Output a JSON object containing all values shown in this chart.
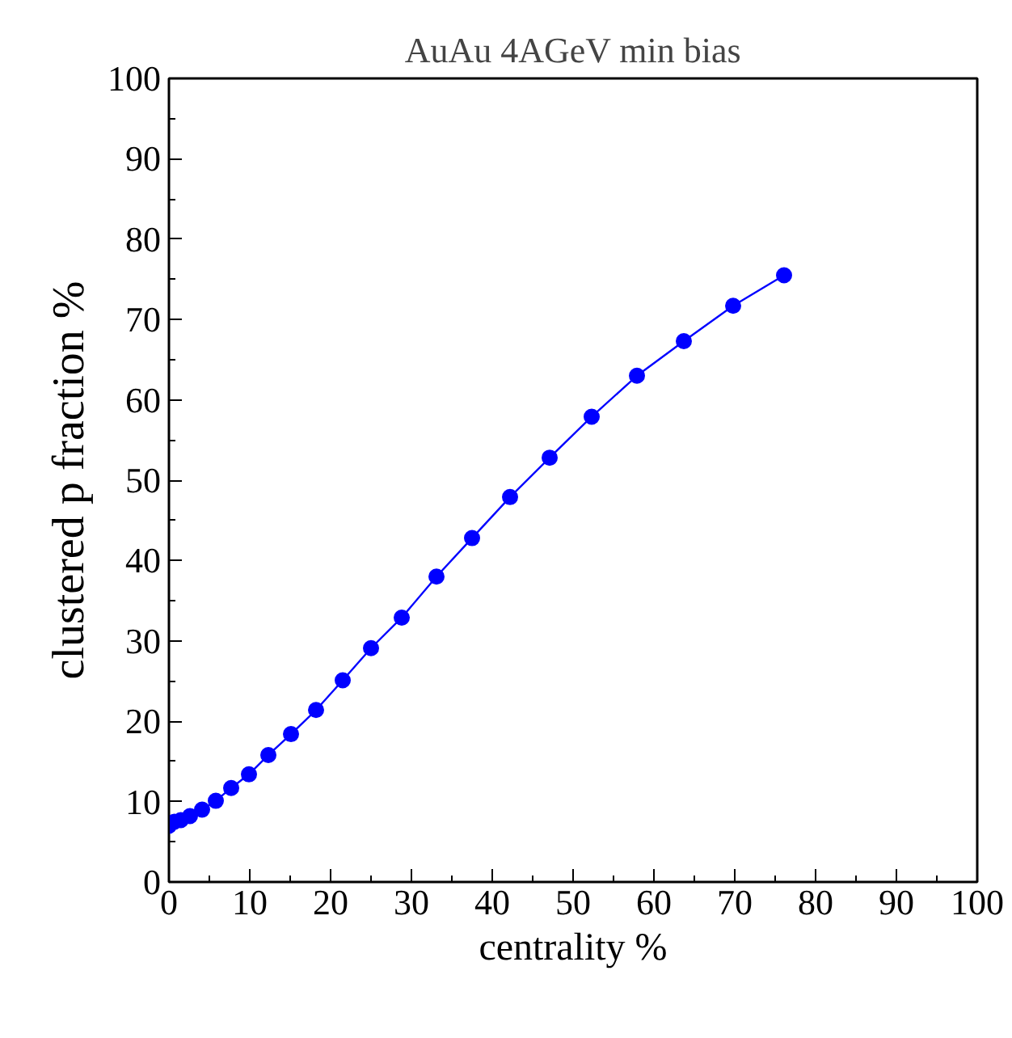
{
  "chart_data": {
    "type": "line",
    "title": "AuAu 4AGeV min bias",
    "xlabel": "centrality %",
    "ylabel": "clustered p fraction %",
    "x": [
      0,
      0.67,
      1.47,
      2.6,
      4.1,
      5.8,
      7.7,
      9.9,
      12.3,
      15.1,
      18.2,
      21.5,
      25,
      28.8,
      33.1,
      37.5,
      42.2,
      47.1,
      52.3,
      57.9,
      63.7,
      69.8,
      76.1
    ],
    "series": [
      {
        "color": "#0000ff",
        "values": [
          7.0,
          7.5,
          7.7,
          8.2,
          9.0,
          10.1,
          11.7,
          13.4,
          15.8,
          18.4,
          21.4,
          25.1,
          29.1,
          32.9,
          38.0,
          42.8,
          47.9,
          52.8,
          57.9,
          63.0,
          67.3,
          71.7,
          75.5
        ]
      }
    ],
    "marker": "circle",
    "line_style": "solid",
    "grid": false,
    "xlim": [
      0,
      100
    ],
    "ylim": [
      0,
      100
    ],
    "xticks": [
      0,
      {
        "value": 5,
        "label": null
      },
      10,
      {
        "value": 15,
        "label": null
      },
      20,
      {
        "value": 25,
        "label": null
      },
      30,
      {
        "value": 35,
        "label": null
      },
      40,
      {
        "value": 45,
        "label": null
      },
      50,
      {
        "value": 55,
        "label": null
      },
      60,
      {
        "value": 65,
        "label": null
      },
      70,
      {
        "value": 75,
        "label": null
      },
      80,
      {
        "value": 85,
        "label": null
      },
      90,
      {
        "value": 95,
        "label": null
      },
      100
    ],
    "yticks": [
      0,
      {
        "value": 5,
        "label": null
      },
      10,
      {
        "value": 15,
        "label": null
      },
      20,
      {
        "value": 25,
        "label": null
      },
      30,
      {
        "value": 35,
        "label": null
      },
      40,
      {
        "value": 45,
        "label": null
      },
      50,
      {
        "value": 55,
        "label": null
      },
      60,
      {
        "value": 65,
        "label": null
      },
      70,
      {
        "value": 75,
        "label": null
      },
      80,
      {
        "value": 85,
        "label": null
      },
      90,
      {
        "value": 95,
        "label": null
      },
      100
    ]
  }
}
